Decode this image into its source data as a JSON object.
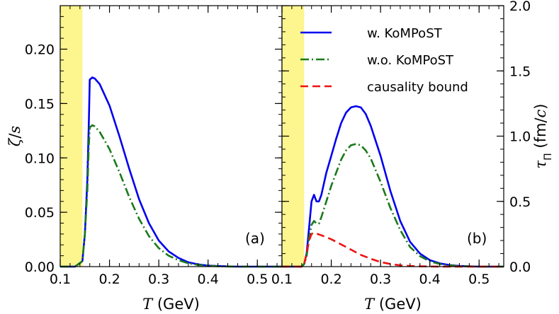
{
  "chart_data": [
    {
      "panel": "a",
      "type": "line",
      "panel_label": "(a)",
      "xlabel_var": "T",
      "xlabel_unit": " (GeV)",
      "ylabel_main": "ζ",
      "ylabel_sep": "/",
      "ylabel_sub": "s",
      "xlim": [
        0.1,
        0.55
      ],
      "ylim": [
        0.0,
        0.24
      ],
      "xticks": [
        0.1,
        0.2,
        0.3,
        0.4,
        0.5
      ],
      "xtick_labels": [
        "0.1",
        "0.2",
        "0.3",
        "0.4",
        "0.5"
      ],
      "yticks": [
        0.0,
        0.05,
        0.1,
        0.15,
        0.2
      ],
      "ytick_labels": [
        "0.00",
        "0.05",
        "0.10",
        "0.15",
        "0.20"
      ],
      "shaded_region": {
        "x_from": 0.1,
        "x_to": 0.145,
        "color": "#fdf58d"
      },
      "series": [
        {
          "name": "w. KoMPoST",
          "color": "#0000ee",
          "style": "solid",
          "x": [
            0.1,
            0.13,
            0.145,
            0.15,
            0.155,
            0.158,
            0.16,
            0.165,
            0.17,
            0.18,
            0.2,
            0.22,
            0.24,
            0.26,
            0.28,
            0.3,
            0.32,
            0.34,
            0.36,
            0.38,
            0.4,
            0.42,
            0.44,
            0.46,
            0.5,
            0.55
          ],
          "y": [
            0.0,
            0.0,
            0.005,
            0.03,
            0.08,
            0.13,
            0.172,
            0.174,
            0.173,
            0.168,
            0.148,
            0.12,
            0.09,
            0.062,
            0.04,
            0.024,
            0.014,
            0.008,
            0.004,
            0.002,
            0.001,
            0.0005,
            0.0002,
            0.0,
            0.0,
            0.0
          ]
        },
        {
          "name": "w.o. KoMPoST",
          "color": "#1a7a1a",
          "style": "dashdot",
          "x": [
            0.1,
            0.13,
            0.145,
            0.15,
            0.155,
            0.158,
            0.16,
            0.165,
            0.17,
            0.18,
            0.2,
            0.22,
            0.24,
            0.26,
            0.28,
            0.3,
            0.32,
            0.34,
            0.36,
            0.38,
            0.4,
            0.42,
            0.44,
            0.46,
            0.5,
            0.55
          ],
          "y": [
            0.0,
            0.0,
            0.005,
            0.03,
            0.07,
            0.11,
            0.128,
            0.13,
            0.129,
            0.124,
            0.108,
            0.087,
            0.064,
            0.044,
            0.028,
            0.017,
            0.01,
            0.006,
            0.003,
            0.0015,
            0.0008,
            0.0003,
            0.0001,
            0.0,
            0.0,
            0.0
          ]
        }
      ]
    },
    {
      "panel": "b",
      "type": "line",
      "panel_label": "(b)",
      "xlabel_var": "T",
      "xlabel_unit": " (GeV)",
      "ylabel_main": "τ",
      "ylabel_sub": "Π",
      "ylabel_unit_open": " (fm/",
      "ylabel_unit_c": "c",
      "ylabel_unit_close": ")",
      "xlim": [
        0.1,
        0.55
      ],
      "ylim": [
        0.0,
        2.0
      ],
      "xticks": [
        0.1,
        0.2,
        0.3,
        0.4,
        0.5
      ],
      "xtick_labels": [
        "0.1",
        "0.2",
        "0.3",
        "0.4",
        "0.5"
      ],
      "yticks": [
        0.0,
        0.5,
        1.0,
        1.5,
        2.0
      ],
      "ytick_labels": [
        "0.0",
        "0.5",
        "1.0",
        "1.5",
        "2.0"
      ],
      "shaded_region": {
        "x_from": 0.1,
        "x_to": 0.145,
        "color": "#fdf58d"
      },
      "legend": {
        "placement": "top-right",
        "entries": [
          "w. KoMPoST",
          "w.o. KoMPoST",
          "causality bound"
        ]
      },
      "series": [
        {
          "name": "w. KoMPoST",
          "color": "#0000ee",
          "style": "solid",
          "x": [
            0.1,
            0.14,
            0.145,
            0.15,
            0.155,
            0.16,
            0.165,
            0.17,
            0.175,
            0.18,
            0.19,
            0.2,
            0.21,
            0.22,
            0.23,
            0.24,
            0.25,
            0.26,
            0.27,
            0.28,
            0.3,
            0.32,
            0.34,
            0.36,
            0.38,
            0.4,
            0.42,
            0.44,
            0.46,
            0.5,
            0.55
          ],
          "y": [
            0.0,
            0.0,
            0.02,
            0.1,
            0.3,
            0.5,
            0.55,
            0.5,
            0.5,
            0.55,
            0.72,
            0.85,
            0.98,
            1.1,
            1.18,
            1.22,
            1.23,
            1.22,
            1.17,
            1.08,
            0.85,
            0.58,
            0.35,
            0.19,
            0.1,
            0.05,
            0.025,
            0.012,
            0.005,
            0.0,
            0.0
          ]
        },
        {
          "name": "w.o. KoMPoST",
          "color": "#1a7a1a",
          "style": "dashdot",
          "x": [
            0.1,
            0.14,
            0.145,
            0.15,
            0.155,
            0.16,
            0.165,
            0.17,
            0.175,
            0.18,
            0.19,
            0.2,
            0.21,
            0.22,
            0.23,
            0.24,
            0.25,
            0.26,
            0.27,
            0.28,
            0.3,
            0.32,
            0.34,
            0.36,
            0.38,
            0.4,
            0.42,
            0.44,
            0.46,
            0.5,
            0.55
          ],
          "y": [
            0.0,
            0.0,
            0.02,
            0.08,
            0.22,
            0.32,
            0.35,
            0.33,
            0.33,
            0.38,
            0.5,
            0.62,
            0.72,
            0.82,
            0.89,
            0.93,
            0.94,
            0.93,
            0.89,
            0.83,
            0.65,
            0.45,
            0.28,
            0.15,
            0.08,
            0.04,
            0.02,
            0.01,
            0.004,
            0.0,
            0.0
          ]
        },
        {
          "name": "causality bound",
          "color": "#ee1111",
          "style": "dashed",
          "x": [
            0.1,
            0.14,
            0.145,
            0.15,
            0.155,
            0.16,
            0.165,
            0.18,
            0.2,
            0.22,
            0.24,
            0.26,
            0.28,
            0.3,
            0.32,
            0.34,
            0.36,
            0.38,
            0.4,
            0.42,
            0.45,
            0.5,
            0.55
          ],
          "y": [
            0.0,
            0.0,
            0.02,
            0.1,
            0.2,
            0.25,
            0.26,
            0.24,
            0.21,
            0.17,
            0.13,
            0.09,
            0.06,
            0.035,
            0.02,
            0.01,
            0.005,
            0.002,
            0.001,
            0.0,
            0.0,
            0.0,
            0.0
          ]
        }
      ]
    }
  ]
}
